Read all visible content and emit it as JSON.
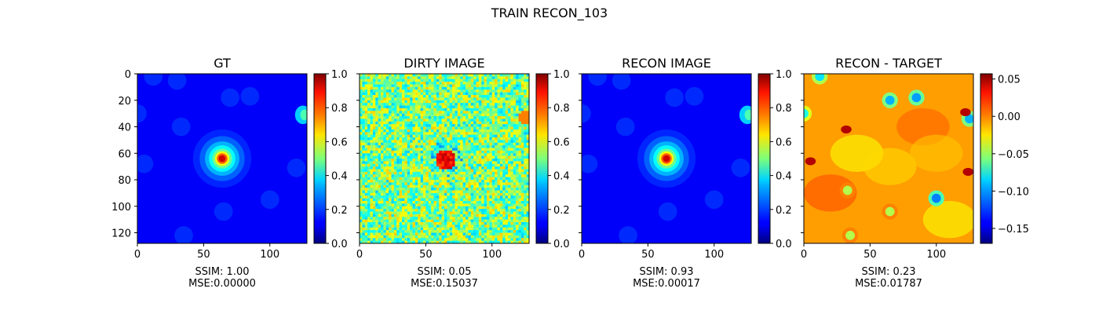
{
  "figure_title": "TRAIN RECON_103",
  "colors": {
    "jet_low": "#00007f",
    "jet_mid": "#7dff7a",
    "jet_high": "#7f0000"
  },
  "chart_data": [
    {
      "type": "heatmap",
      "title": "GT",
      "xlim": [
        0,
        127
      ],
      "ylim": [
        127,
        0
      ],
      "xticks": [
        0,
        50,
        100
      ],
      "yticks": [
        0,
        20,
        40,
        60,
        80,
        100,
        120
      ],
      "image_size": [
        128,
        128
      ],
      "colorbar": {
        "min": 0.0,
        "max": 1.0,
        "ticks": [
          0.0,
          0.2,
          0.4,
          0.6,
          0.8,
          1.0
        ],
        "tick_labels": [
          "0.0",
          "0.2",
          "0.4",
          "0.6",
          "0.8",
          "1.0"
        ]
      },
      "footer": [
        "SSIM: 1.00",
        "MSE:0.00000"
      ]
    },
    {
      "type": "heatmap",
      "title": "DIRTY IMAGE",
      "xlim": [
        0,
        127
      ],
      "ylim": [
        127,
        0
      ],
      "xticks": [
        0,
        50,
        100
      ],
      "image_size": [
        128,
        128
      ],
      "colorbar": {
        "min": 0.0,
        "max": 1.0,
        "ticks": [
          0.0,
          0.2,
          0.4,
          0.6,
          0.8,
          1.0
        ],
        "tick_labels": [
          "0.0",
          "0.2",
          "0.4",
          "0.6",
          "0.8",
          "1.0"
        ]
      },
      "footer": [
        "SSIM: 0.05",
        "MSE:0.15037"
      ]
    },
    {
      "type": "heatmap",
      "title": "RECON IMAGE",
      "xlim": [
        0,
        127
      ],
      "ylim": [
        127,
        0
      ],
      "xticks": [
        0,
        50,
        100
      ],
      "image_size": [
        128,
        128
      ],
      "colorbar": {
        "min": 0.0,
        "max": 1.0,
        "ticks": [
          0.0,
          0.2,
          0.4,
          0.6,
          0.8,
          1.0
        ],
        "tick_labels": [
          "0.0",
          "0.2",
          "0.4",
          "0.6",
          "0.8",
          "1.0"
        ]
      },
      "footer": [
        "SSIM: 0.93",
        "MSE:0.00017"
      ]
    },
    {
      "type": "heatmap",
      "title": "RECON - TARGET",
      "xlim": [
        0,
        127
      ],
      "ylim": [
        127,
        0
      ],
      "xticks": [
        0,
        50,
        100
      ],
      "image_size": [
        128,
        128
      ],
      "colorbar": {
        "min": -0.17,
        "max": 0.057,
        "ticks": [
          -0.15,
          -0.1,
          -0.05,
          0.0,
          0.05
        ],
        "tick_labels": [
          "−0.15",
          "−0.10",
          "−0.05",
          "0.00",
          "0.05"
        ]
      },
      "footer": [
        "SSIM: 0.23",
        "MSE:0.01787"
      ]
    }
  ]
}
